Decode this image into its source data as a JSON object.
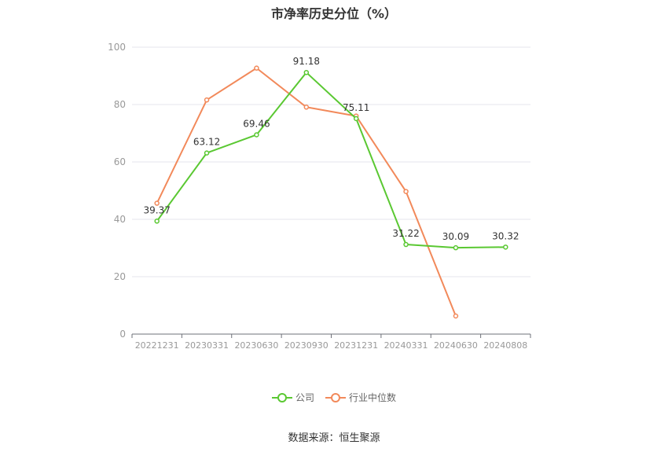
{
  "chart_data": {
    "type": "line",
    "title": "市净率历史分位（%）",
    "categories": [
      "20221231",
      "20230331",
      "20230630",
      "20230930",
      "20231231",
      "20240331",
      "20240630",
      "20240808"
    ],
    "ylim": [
      0,
      100
    ],
    "yticks": [
      0,
      20,
      40,
      60,
      80,
      100
    ],
    "grid": true,
    "legend_position": "bottom",
    "series": [
      {
        "name": "公司",
        "color": "#5ac832",
        "values": [
          39.37,
          63.12,
          69.46,
          91.18,
          75.11,
          31.22,
          30.09,
          30.32
        ],
        "labels": [
          "39.37",
          "63.12",
          "69.46",
          "91.18",
          "75.11",
          "31.22",
          "30.09",
          "30.32"
        ]
      },
      {
        "name": "行业中位数",
        "color": "#f2895a",
        "values": [
          45.6,
          81.6,
          92.7,
          79.1,
          76.0,
          49.7,
          6.3,
          null
        ]
      }
    ]
  },
  "source": "数据来源：恒生聚源"
}
